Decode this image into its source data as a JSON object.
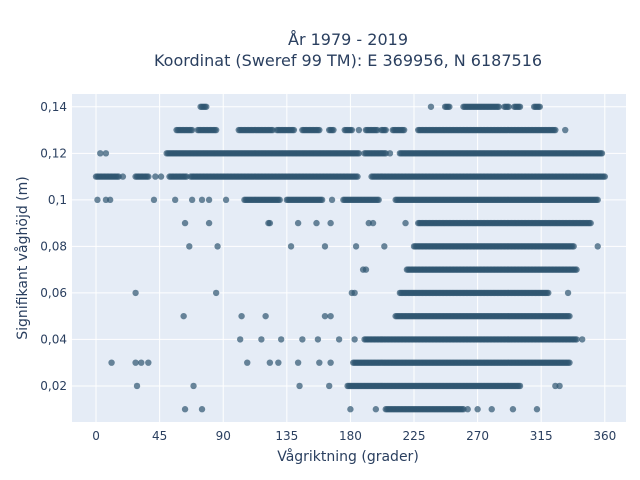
{
  "chart_data": {
    "type": "scatter",
    "title_line1": "År 1979 - 2019",
    "title_line2": "Koordinat (Sweref 99 TM): E 369956, N 6187516",
    "xlabel": "Vågriktning (grader)",
    "ylabel": "Signifikant våghöjd (m)",
    "xlim": [
      -17,
      375
    ],
    "ylim": [
      0.0045,
      0.1455
    ],
    "x_ticks": [
      0,
      45,
      90,
      135,
      180,
      225,
      270,
      315,
      360
    ],
    "x_tick_labels": [
      "0",
      "45",
      "90",
      "135",
      "180",
      "225",
      "270",
      "315",
      "360"
    ],
    "y_ticks": [
      0.02,
      0.04,
      0.06,
      0.08,
      0.1,
      0.12,
      0.14
    ],
    "y_tick_labels": [
      "0,02",
      "0,04",
      "0,06",
      "0,08",
      "0,1",
      "0,12",
      "0,14"
    ],
    "grid": true,
    "marker_color": "#2f5570",
    "background_color": "#e5ecf6",
    "series": [
      {
        "rows": [
          {
            "y": 0.14,
            "segments": [
              [
                74,
                78
              ],
              [
                237,
                237
              ],
              [
                247,
                250
              ],
              [
                260,
                285
              ],
              [
                289,
                292
              ],
              [
                296,
                300
              ],
              [
                310,
                314
              ]
            ]
          },
          {
            "y": 0.13,
            "segments": [
              [
                57,
                68
              ],
              [
                72,
                85
              ],
              [
                101,
                125
              ],
              [
                128,
                140
              ],
              [
                146,
                158
              ],
              [
                165,
                168
              ],
              [
                176,
                181
              ],
              [
                191,
                199
              ],
              [
                202,
                205
              ],
              [
                210,
                218
              ],
              [
                228,
                325
              ]
            ],
            "points": [
              186,
              332
            ]
          },
          {
            "y": 0.12,
            "segments": [
              [
                50,
                185
              ],
              [
                190,
                205
              ],
              [
                215,
                358
              ]
            ],
            "points": [
              3,
              7,
              186,
              208
            ]
          },
          {
            "y": 0.11,
            "segments": [
              [
                0,
                16
              ],
              [
                28,
                37
              ],
              [
                52,
                64
              ],
              [
                67,
                185
              ],
              [
                195,
                360
              ]
            ],
            "points": [
              19,
              42,
              46
            ]
          },
          {
            "y": 0.1,
            "segments": [
              [
                105,
                130
              ],
              [
                135,
                160
              ],
              [
                175,
                200
              ],
              [
                212,
                355
              ]
            ],
            "points": [
              1,
              7,
              10,
              41,
              56,
              68,
              75,
              80,
              92,
              167
            ]
          },
          {
            "y": 0.09,
            "segments": [
              [
                228,
                350
              ]
            ],
            "points": [
              63,
              80,
              122,
              123,
              143,
              156,
              166,
              193,
              196,
              219
            ]
          },
          {
            "y": 0.08,
            "segments": [
              [
                225,
                338
              ]
            ],
            "points": [
              66,
              86,
              138,
              162,
              184,
              204,
              355
            ]
          },
          {
            "y": 0.07,
            "segments": [
              [
                220,
                340
              ]
            ],
            "points": [
              189,
              191
            ]
          },
          {
            "y": 0.06,
            "segments": [
              [
                215,
                320
              ]
            ],
            "points": [
              28,
              85,
              181,
              183,
              334
            ]
          },
          {
            "y": 0.05,
            "segments": [
              [
                212,
                335
              ]
            ],
            "points": [
              62,
              103,
              120,
              162,
              166
            ]
          },
          {
            "y": 0.04,
            "segments": [
              [
                190,
                340
              ]
            ],
            "points": [
              102,
              117,
              131,
              146,
              157,
              172,
              183,
              344
            ]
          },
          {
            "y": 0.03,
            "segments": [
              [
                182,
                335
              ]
            ],
            "points": [
              11,
              28,
              32,
              37,
              107,
              123,
              129,
              143,
              158,
              166
            ]
          },
          {
            "y": 0.02,
            "segments": [
              [
                178,
                300
              ]
            ],
            "points": [
              29,
              69,
              144,
              165,
              325,
              328
            ]
          },
          {
            "y": 0.01,
            "segments": [
              [
                205,
                260
              ]
            ],
            "points": [
              63,
              75,
              180,
              198,
              263,
              270,
              280,
              295,
              312
            ]
          }
        ]
      }
    ]
  }
}
